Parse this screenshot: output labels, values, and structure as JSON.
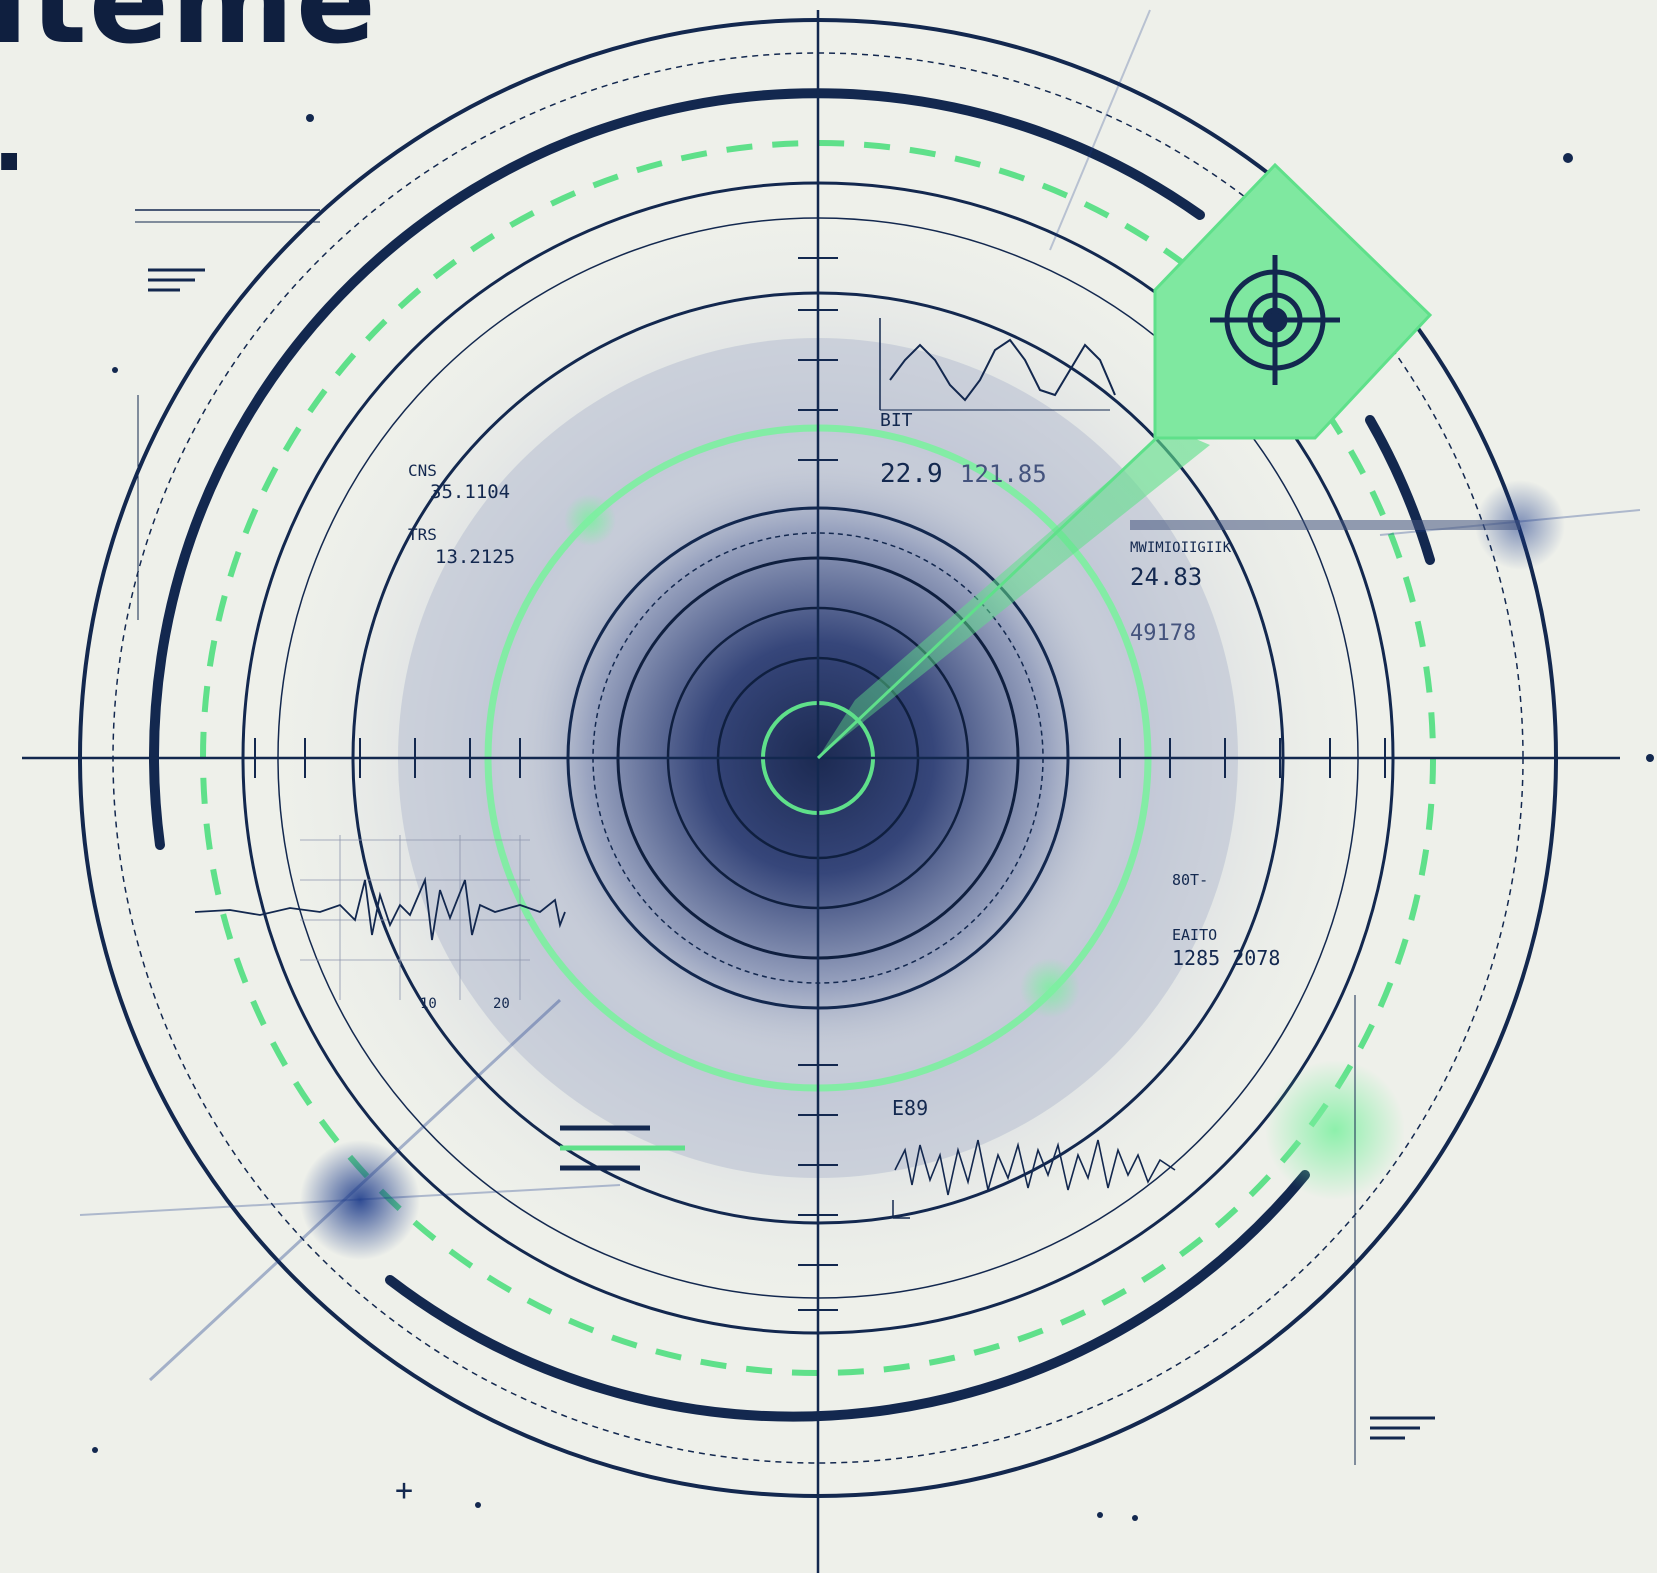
{
  "header": {
    "title_fragment": "iteme",
    "title_dot": "."
  },
  "readouts": {
    "left_top": {
      "label_a": "CNS",
      "value_a": "35.1104",
      "label_b": "TRS",
      "value_b": "13.2125"
    },
    "upper_right": {
      "label": "BIT",
      "value_a": "22.9",
      "value_b": "121.85"
    },
    "right_panel": {
      "heading": "MWIMIOIIGIIK",
      "value_a": "24.83",
      "value_b": "49178"
    },
    "lower_right": {
      "label_a": "80T-",
      "label_b": "EAITO",
      "value": "1285 2078"
    },
    "lower_center": {
      "label": "E89"
    },
    "left_graph": {
      "tick_a": "10",
      "tick_b": "20"
    }
  },
  "colors": {
    "navy": "#13284f",
    "accent_green": "#5fe08a",
    "background": "#eef0ea"
  },
  "icons": {
    "target_badge": "crosshair-target-icon"
  }
}
